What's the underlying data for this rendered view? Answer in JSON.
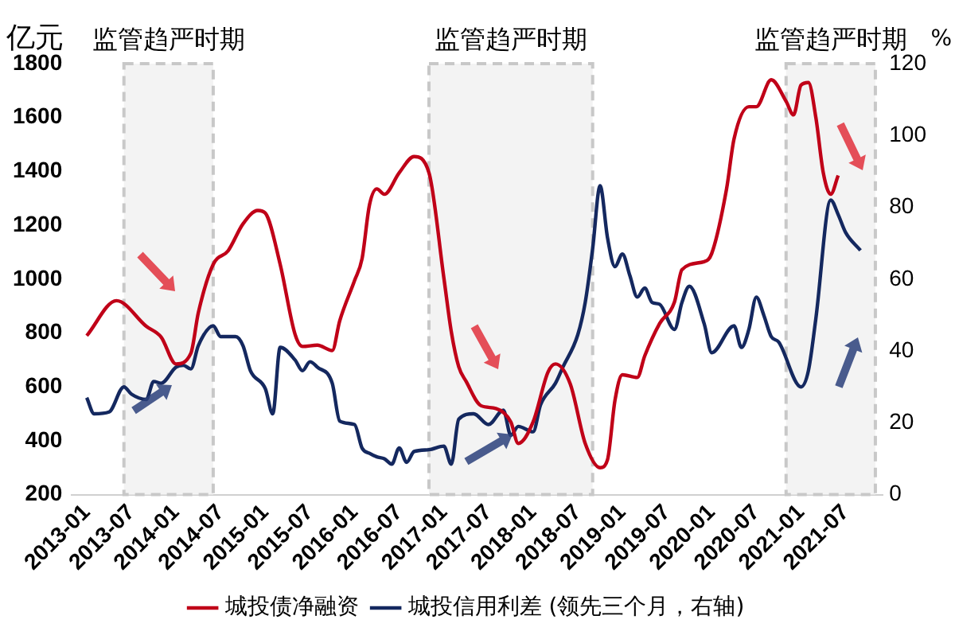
{
  "chart_data": {
    "type": "line",
    "ylabel": "亿元",
    "y2label": "%",
    "xlim": [
      "2012-11",
      "2021-12"
    ],
    "xticks": [
      "2013-01",
      "2013-07",
      "2014-01",
      "2014-07",
      "2015-01",
      "2015-07",
      "2016-01",
      "2016-07",
      "2017-01",
      "2017-07",
      "2018-01",
      "2018-07",
      "2019-01",
      "2019-07",
      "2020-01",
      "2020-07",
      "2021-01",
      "2021-07"
    ],
    "ylim": [
      200,
      1800
    ],
    "yticks": [
      200,
      400,
      600,
      800,
      1000,
      1200,
      1400,
      1600,
      1800
    ],
    "y2lim": [
      0,
      120
    ],
    "y2ticks": [
      0,
      20,
      40,
      60,
      80,
      100,
      120
    ],
    "grid": false,
    "legend": "bottom",
    "marker": "none",
    "line_style": "solid",
    "bands": [
      {
        "axis": "x",
        "from": "2013-06",
        "to": "2014-06",
        "label": "监管趋严时期",
        "color": "#f3f3f3"
      },
      {
        "axis": "x",
        "from": "2016-11",
        "to": "2018-09",
        "label": "监管趋严时期",
        "color": "#f3f3f3"
      },
      {
        "axis": "x",
        "from": "2020-11",
        "to": "2021-11",
        "label": "监管趋严时期",
        "color": "#f3f3f3"
      }
    ],
    "series": [
      {
        "name": "城投债净融资",
        "color": "#c00018",
        "x": [
          "2013-01",
          "2013-05",
          "2013-09",
          "2013-11",
          "2014-01",
          "2014-03",
          "2014-04",
          "2014-06",
          "2014-08",
          "2014-10",
          "2014-12",
          "2015-01",
          "2015-03",
          "2015-05",
          "2015-06",
          "2015-08",
          "2015-10",
          "2015-11",
          "2016-01",
          "2016-02",
          "2016-03",
          "2016-04",
          "2016-05",
          "2016-07",
          "2016-09",
          "2016-11",
          "2017-01",
          "2017-02",
          "2017-03",
          "2017-04",
          "2017-06",
          "2017-08",
          "2017-10",
          "2017-11",
          "2018-01",
          "2018-03",
          "2018-04",
          "2018-06",
          "2018-08",
          "2018-10",
          "2018-11",
          "2018-12",
          "2019-01",
          "2019-03",
          "2019-04",
          "2019-06",
          "2019-08",
          "2019-09",
          "2019-12",
          "2020-01",
          "2020-03",
          "2020-04",
          "2020-06",
          "2020-07",
          "2020-09",
          "2020-11",
          "2020-12",
          "2021-01",
          "2021-02",
          "2021-03",
          "2021-04",
          "2021-05",
          "2021-06"
        ],
        "values": [
          790,
          920,
          825,
          785,
          685,
          725,
          875,
          1055,
          1105,
          1205,
          1255,
          1245,
          1055,
          795,
          750,
          755,
          735,
          845,
          995,
          1075,
          1275,
          1335,
          1315,
          1395,
          1455,
          1395,
          1005,
          805,
          675,
          620,
          530,
          520,
          470,
          390,
          470,
          655,
          685,
          610,
          390,
          300,
          330,
          550,
          645,
          635,
          715,
          835,
          915,
          1035,
          1065,
          1095,
          1335,
          1520,
          1640,
          1640,
          1740,
          1660,
          1610,
          1720,
          1730,
          1600,
          1395,
          1315,
          1385
        ]
      },
      {
        "name": "城投信用利差 (领先三个月，右轴)",
        "color": "#14285f",
        "axis": "y2",
        "x": [
          "2013-01",
          "2013-02",
          "2013-04",
          "2013-06",
          "2013-07",
          "2013-09",
          "2013-10",
          "2013-11",
          "2014-01",
          "2014-02",
          "2014-03",
          "2014-04",
          "2014-06",
          "2014-07",
          "2014-09",
          "2014-10",
          "2014-11",
          "2015-01",
          "2015-02",
          "2015-03",
          "2015-05",
          "2015-06",
          "2015-07",
          "2015-08",
          "2015-10",
          "2015-11",
          "2016-01",
          "2016-02",
          "2016-03",
          "2016-04",
          "2016-05",
          "2016-06",
          "2016-07",
          "2016-08",
          "2016-09",
          "2016-11",
          "2017-01",
          "2017-02",
          "2017-03",
          "2017-05",
          "2017-07",
          "2017-09",
          "2017-10",
          "2017-11",
          "2018-01",
          "2018-02",
          "2018-04",
          "2018-05",
          "2018-07",
          "2018-08",
          "2018-09",
          "2018-10",
          "2018-11",
          "2018-12",
          "2019-01",
          "2019-02",
          "2019-03",
          "2019-04",
          "2019-05",
          "2019-06",
          "2019-08",
          "2019-09",
          "2019-10",
          "2019-12",
          "2020-01",
          "2020-04",
          "2020-05",
          "2020-06",
          "2020-07",
          "2020-08",
          "2020-09",
          "2020-10",
          "2021-01",
          "2021-02",
          "2021-03",
          "2021-05",
          "2021-06",
          "2021-07",
          "2021-09"
        ],
        "values": [
          27,
          22.5,
          23,
          30,
          28,
          26.5,
          31.5,
          31,
          35.5,
          36,
          35,
          41.5,
          47,
          44,
          44,
          41.5,
          34.5,
          29.5,
          22.5,
          41,
          37.5,
          34.5,
          37,
          35.5,
          31,
          20.5,
          19.5,
          13,
          11.5,
          10.5,
          10,
          8.5,
          13,
          9,
          12,
          12.5,
          13.5,
          8.5,
          21,
          22.5,
          19.5,
          23.5,
          16.5,
          19,
          17.5,
          25,
          31,
          35.5,
          44.5,
          53.5,
          68.5,
          86,
          71.5,
          63.5,
          67,
          61,
          55,
          57.5,
          53.5,
          53,
          46,
          53.5,
          58,
          47.5,
          39.5,
          47,
          41,
          46,
          55,
          50,
          44,
          42.5,
          30,
          34.5,
          49,
          82,
          78,
          73,
          68
        ]
      }
    ]
  }
}
